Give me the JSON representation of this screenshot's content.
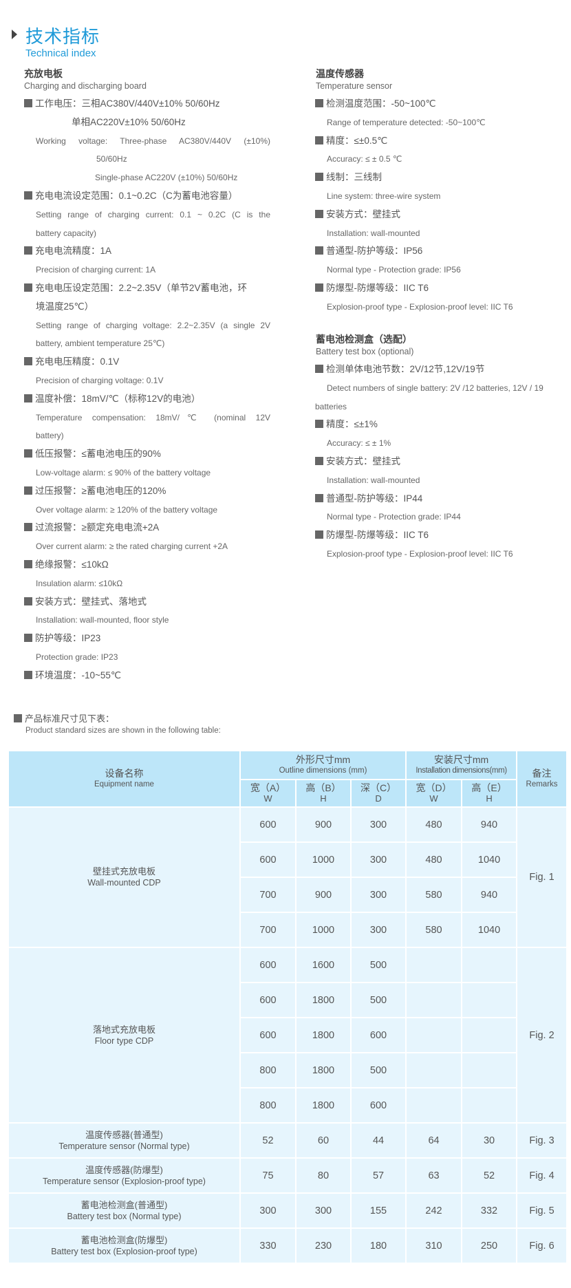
{
  "header": {
    "title_cn": "技术指标",
    "title_en": "Technical index"
  },
  "left": {
    "title_cn": "充放电板",
    "title_en": "Charging and discharging board",
    "lines": [
      {
        "t": "工作电压：三相AC380V/440V±10%  50/60Hz",
        "b": 1
      },
      {
        "t": "单相AC220V±10%   50/60Hz",
        "i": 69
      },
      {
        "t": "Working voltage:  Three-phase  AC380V/440V (±10%)",
        "e": 1,
        "j": 1
      },
      {
        "t": "50/60Hz",
        "e": 1,
        "i": 88
      },
      {
        "t": "Single-phase AC220V (±10%) 50/60Hz",
        "e": 1,
        "i": 86
      },
      {
        "t": "充电电流设定范围：0.1~0.2C（C为蓄电池容量）",
        "b": 1
      },
      {
        "t": "Setting range of charging current: 0.1 ~ 0.2C (C is the",
        "e": 1,
        "j": 1
      },
      {
        "t": "battery capacity)",
        "e": 1
      },
      {
        "t": "充电电流精度：1A",
        "b": 1
      },
      {
        "t": "Precision of charging current: 1A",
        "e": 1
      },
      {
        "t": "充电电压设定范围：2.2~2.35V（单节2V蓄电池，环",
        "b": 1
      },
      {
        "t": "境温度25℃）",
        "i": 17
      },
      {
        "t": "Setting range of charging voltage: 2.2~2.35V (a single 2V",
        "e": 1,
        "j": 1
      },
      {
        "t": "battery, ambient temperature 25℃)",
        "e": 1
      },
      {
        "t": "充电电压精度：0.1V",
        "b": 1
      },
      {
        "t": "Precision of charging voltage: 0.1V",
        "e": 1
      },
      {
        "t": "温度补偿：18mV/℃（标称12V的电池）",
        "b": 1
      },
      {
        "t": "Temperature  compensation:  18mV/℃  (nominal  12V",
        "e": 1,
        "j": 1
      },
      {
        "t": "battery)",
        "e": 1
      },
      {
        "t": "低压报警：≤蓄电池电压的90%",
        "b": 1
      },
      {
        "t": "Low-voltage alarm: ≤ 90% of the battery voltage",
        "e": 1
      },
      {
        "t": "过压报警：≥蓄电池电压的120%",
        "b": 1
      },
      {
        "t": "Over voltage alarm: ≥ 120% of the battery voltage",
        "e": 1
      },
      {
        "t": "过流报警：≥额定充电电流+2A",
        "b": 1
      },
      {
        "t": "Over current alarm: ≥ the rated charging current +2A",
        "e": 1
      },
      {
        "t": "绝缘报警：≤10kΩ",
        "b": 1
      },
      {
        "t": "Insulation alarm: ≤10kΩ",
        "e": 1
      },
      {
        "t": "安装方式：壁挂式、落地式",
        "b": 1
      },
      {
        "t": "Installation: wall-mounted, floor style",
        "e": 1
      },
      {
        "t": "防护等级：IP23",
        "b": 1
      },
      {
        "t": "Protection grade: IP23",
        "e": 1
      },
      {
        "t": "环境温度：-10~55℃",
        "b": 1
      }
    ]
  },
  "sensor": {
    "title_cn": "温度传感器",
    "title_en": "Temperature sensor",
    "lines": [
      {
        "t": "检测温度范围：-50~100℃",
        "b": 1
      },
      {
        "t": "Range of temperature detected: -50~100℃",
        "e": 1
      },
      {
        "t": "精度：≤±0.5℃",
        "b": 1
      },
      {
        "t": "Accuracy: ≤ ± 0.5 ℃",
        "e": 1
      },
      {
        "t": "线制：三线制",
        "b": 1
      },
      {
        "t": "Line system: three-wire system",
        "e": 1
      },
      {
        "t": "安装方式：壁挂式",
        "b": 1
      },
      {
        "t": "Installation: wall-mounted",
        "e": 1
      },
      {
        "t": "普通型-防护等级：IP56",
        "b": 1
      },
      {
        "t": "Normal type - Protection grade: IP56",
        "e": 1
      },
      {
        "t": "防爆型-防爆等级：IIC T6",
        "b": 1
      },
      {
        "t": "Explosion-proof type - Explosion-proof level: IIC T6",
        "e": 1
      }
    ]
  },
  "battery": {
    "title_cn": "蓄电池检测盒（选配）",
    "title_en": "Battery test box (optional)",
    "lines": [
      {
        "t": "检测单体电池节数：2V/12节,12V/19节",
        "b": 1
      },
      {
        "t": "Detect numbers of single battery: 2V /12 batteries, 12V / 19",
        "e": 1
      },
      {
        "t": "batteries",
        "e": 1,
        "i": -17
      },
      {
        "t": "精度：≤±1%",
        "b": 1
      },
      {
        "t": "Accuracy: ≤ ± 1%",
        "e": 1
      },
      {
        "t": "安装方式：壁挂式",
        "b": 1
      },
      {
        "t": "Installation: wall-mounted",
        "e": 1
      },
      {
        "t": "普通型-防护等级：IP44",
        "b": 1
      },
      {
        "t": "Normal type - Protection grade: IP44",
        "e": 1
      },
      {
        "t": "防爆型-防爆等级：IIC T6",
        "b": 1
      },
      {
        "t": "Explosion-proof type - Explosion-proof level: IIC T6",
        "e": 1
      }
    ]
  },
  "sizes": {
    "title_cn": "产品标准尺寸见下表：",
    "title_en": "Product standard sizes are shown in the following table:"
  },
  "table": {
    "h_name_cn": "设备名称",
    "h_name_en": "Equipment name",
    "h_outline_cn": "外形尺寸mm",
    "h_outline_en": "Outline dimensions  (mm)",
    "h_install_cn": "安装尺寸mm",
    "h_install_en": "Installation dimensions(mm)",
    "h_remarks_cn": "备注",
    "h_remarks_en": "Remarks",
    "sub": [
      [
        "宽（A）",
        "W"
      ],
      [
        "高（B）",
        "H"
      ],
      [
        "深（C）",
        "D"
      ],
      [
        "宽（D）",
        "W"
      ],
      [
        "高（E）",
        "H"
      ]
    ],
    "groups": [
      {
        "cn": "壁挂式充放电板",
        "en": "Wall-mounted CDP",
        "remark": "Fig. 1",
        "rows": [
          [
            "600",
            "900",
            "300",
            "480",
            "940"
          ],
          [
            "600",
            "1000",
            "300",
            "480",
            "1040"
          ],
          [
            "700",
            "900",
            "300",
            "580",
            "940"
          ],
          [
            "700",
            "1000",
            "300",
            "580",
            "1040"
          ]
        ]
      },
      {
        "cn": "落地式充放电板",
        "en": "Floor type CDP",
        "remark": "Fig. 2",
        "rows": [
          [
            "600",
            "1600",
            "500",
            "",
            ""
          ],
          [
            "600",
            "1800",
            "500",
            "",
            ""
          ],
          [
            "600",
            "1800",
            "600",
            "",
            ""
          ],
          [
            "800",
            "1800",
            "500",
            "",
            ""
          ],
          [
            "800",
            "1800",
            "600",
            "",
            ""
          ]
        ]
      },
      {
        "cn": "温度传感器(普通型)",
        "en": "Temperature sensor (Normal type)",
        "remark": "Fig. 3",
        "rows": [
          [
            "52",
            "60",
            "44",
            "64",
            "30"
          ]
        ]
      },
      {
        "cn": "温度传感器(防爆型)",
        "en": "Temperature sensor (Explosion-proof type)",
        "remark": "Fig. 4",
        "rows": [
          [
            "75",
            "80",
            "57",
            "63",
            "52"
          ]
        ]
      },
      {
        "cn": "蓄电池检测盒(普通型)",
        "en": "Battery test box (Normal type)",
        "remark": "Fig. 5",
        "rows": [
          [
            "300",
            "300",
            "155",
            "242",
            "332"
          ]
        ]
      },
      {
        "cn": "蓄电池检测盒(防爆型)",
        "en": "Battery test box (Explosion-proof type)",
        "remark": "Fig. 6",
        "rows": [
          [
            "330",
            "230",
            "180",
            "310",
            "250"
          ]
        ]
      }
    ]
  },
  "colors": {
    "accent": "#1f9ad8",
    "header_bg": "#bde6f9",
    "body_bg": "#e6f5fd"
  }
}
